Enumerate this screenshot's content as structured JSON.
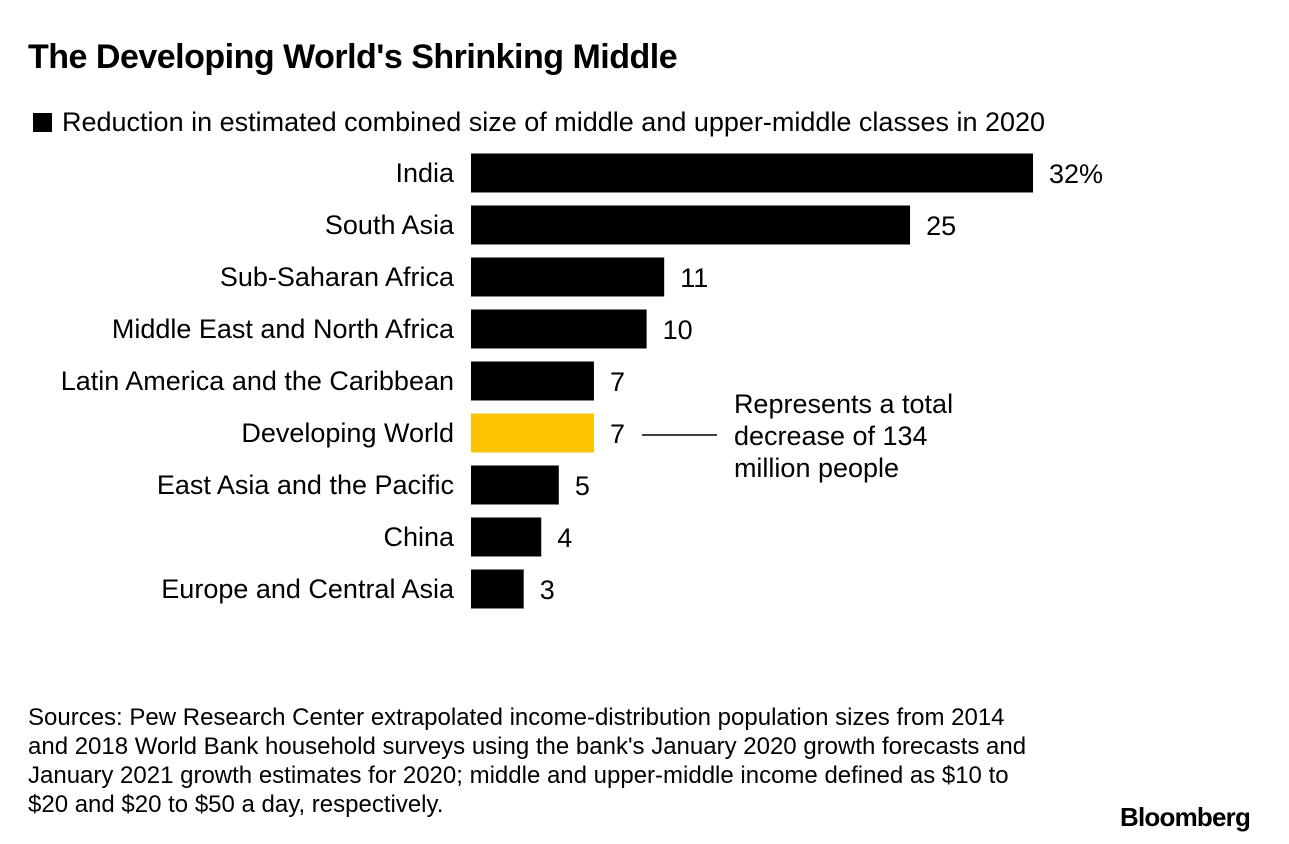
{
  "title": "The Developing World's Shrinking Middle",
  "legend": {
    "label": "Reduction in estimated combined size of middle and upper-middle classes in 2020",
    "color": "#000000"
  },
  "chart_data": {
    "type": "bar",
    "orientation": "horizontal",
    "categories": [
      "India",
      "South Asia",
      "Sub-Saharan Africa",
      "Middle East and North Africa",
      "Latin America and the Caribbean",
      "Developing World",
      "East Asia and the Pacific",
      "China",
      "Europe and Central Asia"
    ],
    "values": [
      32,
      25,
      11,
      10,
      7,
      7,
      5,
      4,
      3
    ],
    "value_labels": [
      "32%",
      "25",
      "11",
      "10",
      "7",
      "7",
      "5",
      "4",
      "3"
    ],
    "bar_color": "#000000",
    "highlight_category": "Developing World",
    "highlight_color": "#fdc300",
    "xlim": [
      0,
      32
    ],
    "grid": false,
    "annotation": {
      "category": "Developing World",
      "text_lines": [
        "Represents a total",
        "decrease of 134",
        "million people"
      ]
    }
  },
  "sources": "Sources: Pew Research Center extrapolated income-distribution population sizes from 2014 and 2018 World Bank household surveys using the bank's January 2020 growth forecasts and January 2021 growth estimates for 2020; middle and upper-middle income defined as $10 to $20 and $20 to $50 a day, respectively.",
  "brand": "Bloomberg"
}
